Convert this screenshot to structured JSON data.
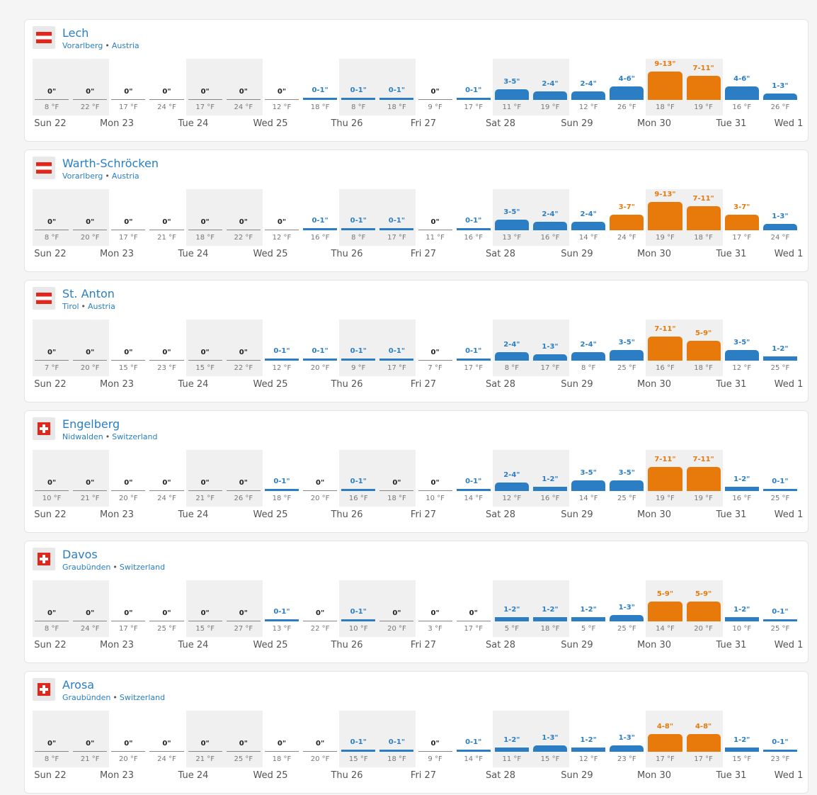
{
  "chart_data": [
    {
      "type": "bar",
      "name": "Lech",
      "region": "Vorarlberg",
      "country": "Austria",
      "flag": "austria-flag-icon",
      "days": [
        "Sun 22",
        "Mon 23",
        "Tue 24",
        "Wed 25",
        "Thu 26",
        "Fri 27",
        "Sat 28",
        "Sun 29",
        "Mon 30",
        "Tue 31",
        "Wed 1"
      ],
      "snow": [
        "0\"",
        "0\"",
        "0\"",
        "0\"",
        "0\"",
        "0\"",
        "0\"",
        "0-1\"",
        "0-1\"",
        "0-1\"",
        "0\"",
        "0-1\"",
        "3-5\"",
        "2-4\"",
        "2-4\"",
        "4-6\"",
        "9-13\"",
        "7-11\"",
        "4-6\"",
        "1-3\""
      ],
      "snow_max": [
        0,
        0,
        0,
        0,
        0,
        0,
        0,
        1,
        1,
        1,
        0,
        1,
        5,
        4,
        4,
        6,
        13,
        11,
        6,
        3
      ],
      "temps": [
        "8 °F",
        "22 °F",
        "17 °F",
        "24 °F",
        "17 °F",
        "24 °F",
        "12 °F",
        "18 °F",
        "8 °F",
        "18 °F",
        "9 °F",
        "17 °F",
        "11 °F",
        "19 °F",
        "12 °F",
        "26 °F",
        "18 °F",
        "19 °F",
        "16 °F",
        "26 °F"
      ]
    },
    {
      "type": "bar",
      "name": "Warth-Schröcken",
      "region": "Vorarlberg",
      "country": "Austria",
      "flag": "austria-flag-icon",
      "days": [
        "Sun 22",
        "Mon 23",
        "Tue 24",
        "Wed 25",
        "Thu 26",
        "Fri 27",
        "Sat 28",
        "Sun 29",
        "Mon 30",
        "Tue 31",
        "Wed 1"
      ],
      "snow": [
        "0\"",
        "0\"",
        "0\"",
        "0\"",
        "0\"",
        "0\"",
        "0\"",
        "0-1\"",
        "0-1\"",
        "0-1\"",
        "0\"",
        "0-1\"",
        "3-5\"",
        "2-4\"",
        "2-4\"",
        "3-7\"",
        "9-13\"",
        "7-11\"",
        "3-7\"",
        "1-3\""
      ],
      "snow_max": [
        0,
        0,
        0,
        0,
        0,
        0,
        0,
        1,
        1,
        1,
        0,
        1,
        5,
        4,
        4,
        7,
        13,
        11,
        7,
        3
      ],
      "temps": [
        "8 °F",
        "20 °F",
        "17 °F",
        "21 °F",
        "18 °F",
        "22 °F",
        "12 °F",
        "16 °F",
        "8 °F",
        "17 °F",
        "11 °F",
        "16 °F",
        "13 °F",
        "16 °F",
        "14 °F",
        "24 °F",
        "19 °F",
        "18 °F",
        "17 °F",
        "24 °F"
      ]
    },
    {
      "type": "bar",
      "name": "St. Anton",
      "region": "Tirol",
      "country": "Austria",
      "flag": "austria-flag-icon",
      "days": [
        "Sun 22",
        "Mon 23",
        "Tue 24",
        "Wed 25",
        "Thu 26",
        "Fri 27",
        "Sat 28",
        "Sun 29",
        "Mon 30",
        "Tue 31",
        "Wed 1"
      ],
      "snow": [
        "0\"",
        "0\"",
        "0\"",
        "0\"",
        "0\"",
        "0\"",
        "0-1\"",
        "0-1\"",
        "0-1\"",
        "0-1\"",
        "0\"",
        "0-1\"",
        "2-4\"",
        "1-3\"",
        "2-4\"",
        "3-5\"",
        "7-11\"",
        "5-9\"",
        "3-5\"",
        "1-2\""
      ],
      "snow_max": [
        0,
        0,
        0,
        0,
        0,
        0,
        1,
        1,
        1,
        1,
        0,
        1,
        4,
        3,
        4,
        5,
        11,
        9,
        5,
        2
      ],
      "temps": [
        "7 °F",
        "20 °F",
        "15 °F",
        "23 °F",
        "15 °F",
        "22 °F",
        "12 °F",
        "20 °F",
        "9 °F",
        "17 °F",
        "7 °F",
        "17 °F",
        "8 °F",
        "17 °F",
        "8 °F",
        "25 °F",
        "16 °F",
        "18 °F",
        "12 °F",
        "25 °F"
      ]
    },
    {
      "type": "bar",
      "name": "Engelberg",
      "region": "Nidwalden",
      "country": "Switzerland",
      "flag": "switzerland-flag-icon",
      "days": [
        "Sun 22",
        "Mon 23",
        "Tue 24",
        "Wed 25",
        "Thu 26",
        "Fri 27",
        "Sat 28",
        "Sun 29",
        "Mon 30",
        "Tue 31",
        "Wed 1"
      ],
      "snow": [
        "0\"",
        "0\"",
        "0\"",
        "0\"",
        "0\"",
        "0\"",
        "0-1\"",
        "0\"",
        "0-1\"",
        "0\"",
        "0\"",
        "0-1\"",
        "2-4\"",
        "1-2\"",
        "3-5\"",
        "3-5\"",
        "7-11\"",
        "7-11\"",
        "1-2\"",
        "0-1\""
      ],
      "snow_max": [
        0,
        0,
        0,
        0,
        0,
        0,
        1,
        0,
        1,
        0,
        0,
        1,
        4,
        2,
        5,
        5,
        11,
        11,
        2,
        1
      ],
      "temps": [
        "10 °F",
        "21 °F",
        "20 °F",
        "24 °F",
        "21 °F",
        "26 °F",
        "18 °F",
        "20 °F",
        "16 °F",
        "18 °F",
        "10 °F",
        "14 °F",
        "12 °F",
        "16 °F",
        "14 °F",
        "25 °F",
        "19 °F",
        "19 °F",
        "16 °F",
        "25 °F"
      ]
    },
    {
      "type": "bar",
      "name": "Davos",
      "region": "Graubünden",
      "country": "Switzerland",
      "flag": "switzerland-flag-icon",
      "days": [
        "Sun 22",
        "Mon 23",
        "Tue 24",
        "Wed 25",
        "Thu 26",
        "Fri 27",
        "Sat 28",
        "Sun 29",
        "Mon 30",
        "Tue 31",
        "Wed 1"
      ],
      "snow": [
        "0\"",
        "0\"",
        "0\"",
        "0\"",
        "0\"",
        "0\"",
        "0-1\"",
        "0\"",
        "0-1\"",
        "0\"",
        "0\"",
        "0\"",
        "1-2\"",
        "1-2\"",
        "1-2\"",
        "1-3\"",
        "5-9\"",
        "5-9\"",
        "1-2\"",
        "0-1\""
      ],
      "snow_max": [
        0,
        0,
        0,
        0,
        0,
        0,
        1,
        0,
        1,
        0,
        0,
        0,
        2,
        2,
        2,
        3,
        9,
        9,
        2,
        1
      ],
      "temps": [
        "8 °F",
        "24 °F",
        "17 °F",
        "25 °F",
        "15 °F",
        "27 °F",
        "13 °F",
        "22 °F",
        "10 °F",
        "20 °F",
        "3 °F",
        "17 °F",
        "5 °F",
        "18 °F",
        "5 °F",
        "25 °F",
        "14 °F",
        "20 °F",
        "10 °F",
        "25 °F"
      ]
    },
    {
      "type": "bar",
      "name": "Arosa",
      "region": "Graubünden",
      "country": "Switzerland",
      "flag": "switzerland-flag-icon",
      "days": [
        "Sun 22",
        "Mon 23",
        "Tue 24",
        "Wed 25",
        "Thu 26",
        "Fri 27",
        "Sat 28",
        "Sun 29",
        "Mon 30",
        "Tue 31",
        "Wed 1"
      ],
      "snow": [
        "0\"",
        "0\"",
        "0\"",
        "0\"",
        "0\"",
        "0\"",
        "0\"",
        "0\"",
        "0-1\"",
        "0-1\"",
        "0\"",
        "0-1\"",
        "1-2\"",
        "1-3\"",
        "1-2\"",
        "1-3\"",
        "4-8\"",
        "4-8\"",
        "1-2\"",
        "0-1\""
      ],
      "snow_max": [
        0,
        0,
        0,
        0,
        0,
        0,
        0,
        0,
        1,
        1,
        0,
        1,
        2,
        3,
        2,
        3,
        8,
        8,
        2,
        1
      ],
      "temps": [
        "8 °F",
        "21 °F",
        "20 °F",
        "24 °F",
        "21 °F",
        "25 °F",
        "18 °F",
        "20 °F",
        "15 °F",
        "18 °F",
        "9 °F",
        "14 °F",
        "11 °F",
        "15 °F",
        "12 °F",
        "23 °F",
        "17 °F",
        "17 °F",
        "15 °F",
        "23 °F"
      ]
    }
  ],
  "colors": {
    "blue": "#2b7ec4",
    "orange": "#e8790b",
    "zero": "#222222"
  }
}
